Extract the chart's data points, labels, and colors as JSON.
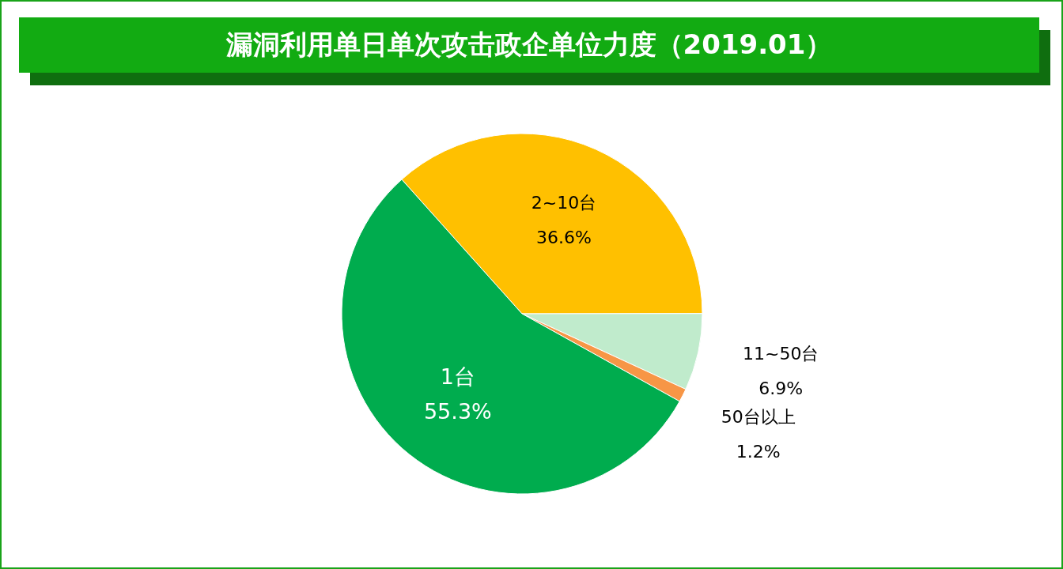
{
  "chart_data": {
    "type": "pie",
    "title": "漏洞利用单日单次攻击政企单位力度（2019.01）",
    "categories": [
      "2~10台",
      "11~50台",
      "50台以上",
      "1台"
    ],
    "values": [
      36.6,
      6.9,
      1.2,
      55.3
    ],
    "colors": [
      "#ffc000",
      "#c0ebcc",
      "#f79646",
      "#00ac4e"
    ],
    "value_labels": [
      "36.6%",
      "6.9%",
      "1.2%",
      "55.3%"
    ],
    "legend": false
  }
}
